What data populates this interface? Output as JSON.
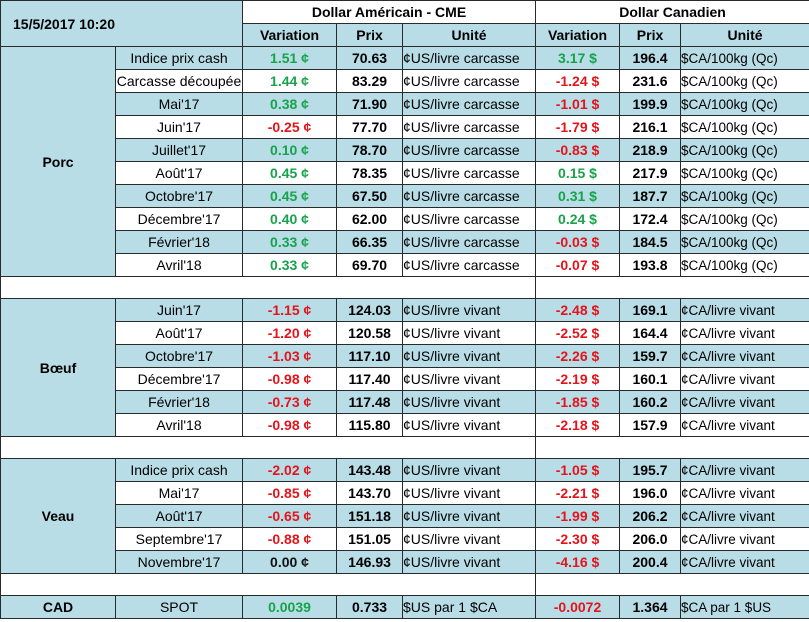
{
  "header": {
    "timestamp": "15/5/2017 10:20",
    "usd_title": "Dollar Américain - CME",
    "cad_title": "Dollar Canadien",
    "variation": "Variation",
    "prix": "Prix",
    "unite": "Unité"
  },
  "colors": {
    "positive": "#17a34a",
    "negative": "#e3141b",
    "band": "#b8dde7"
  },
  "groups": [
    {
      "name": "Porc",
      "rows": [
        {
          "label": "Indice prix cash",
          "usd_var": "1.51 ¢",
          "usd_price": "70.63",
          "usd_unit": "¢US/livre carcasse",
          "cad_var": "3.17 $",
          "cad_price": "196.4",
          "cad_unit": "$CA/100kg (Qc)"
        },
        {
          "label": "Carcasse découpée",
          "usd_var": "1.44 ¢",
          "usd_price": "83.29",
          "usd_unit": "¢US/livre carcasse",
          "cad_var": "-1.24 $",
          "cad_price": "231.6",
          "cad_unit": "$CA/100kg (Qc)"
        },
        {
          "label": "Mai'17",
          "usd_var": "0.38 ¢",
          "usd_price": "71.90",
          "usd_unit": "¢US/livre carcasse",
          "cad_var": "-1.01 $",
          "cad_price": "199.9",
          "cad_unit": "$CA/100kg (Qc)"
        },
        {
          "label": "Juin'17",
          "usd_var": "-0.25 ¢",
          "usd_price": "77.70",
          "usd_unit": "¢US/livre carcasse",
          "cad_var": "-1.79 $",
          "cad_price": "216.1",
          "cad_unit": "$CA/100kg (Qc)"
        },
        {
          "label": "Juillet'17",
          "usd_var": "0.10 ¢",
          "usd_price": "78.70",
          "usd_unit": "¢US/livre carcasse",
          "cad_var": "-0.83 $",
          "cad_price": "218.9",
          "cad_unit": "$CA/100kg (Qc)"
        },
        {
          "label": "Août'17",
          "usd_var": "0.45 ¢",
          "usd_price": "78.35",
          "usd_unit": "¢US/livre carcasse",
          "cad_var": "0.15 $",
          "cad_price": "217.9",
          "cad_unit": "$CA/100kg (Qc)"
        },
        {
          "label": "Octobre'17",
          "usd_var": "0.45 ¢",
          "usd_price": "67.50",
          "usd_unit": "¢US/livre carcasse",
          "cad_var": "0.31 $",
          "cad_price": "187.7",
          "cad_unit": "$CA/100kg (Qc)"
        },
        {
          "label": "Décembre'17",
          "usd_var": "0.40 ¢",
          "usd_price": "62.00",
          "usd_unit": "¢US/livre carcasse",
          "cad_var": "0.24 $",
          "cad_price": "172.4",
          "cad_unit": "$CA/100kg (Qc)"
        },
        {
          "label": "Février'18",
          "usd_var": "0.33 ¢",
          "usd_price": "66.35",
          "usd_unit": "¢US/livre carcasse",
          "cad_var": "-0.03 $",
          "cad_price": "184.5",
          "cad_unit": "$CA/100kg (Qc)"
        },
        {
          "label": "Avril'18",
          "usd_var": "0.33 ¢",
          "usd_price": "69.70",
          "usd_unit": "¢US/livre carcasse",
          "cad_var": "-0.07 $",
          "cad_price": "193.8",
          "cad_unit": "$CA/100kg (Qc)"
        }
      ]
    },
    {
      "name": "Bœuf",
      "rows": [
        {
          "label": "Juin'17",
          "usd_var": "-1.15 ¢",
          "usd_price": "124.03",
          "usd_unit": "¢US/livre vivant",
          "cad_var": "-2.48 $",
          "cad_price": "169.1",
          "cad_unit": "¢CA/livre vivant"
        },
        {
          "label": "Août'17",
          "usd_var": "-1.20 ¢",
          "usd_price": "120.58",
          "usd_unit": "¢US/livre vivant",
          "cad_var": "-2.52 $",
          "cad_price": "164.4",
          "cad_unit": "¢CA/livre vivant"
        },
        {
          "label": "Octobre'17",
          "usd_var": "-1.03 ¢",
          "usd_price": "117.10",
          "usd_unit": "¢US/livre vivant",
          "cad_var": "-2.26 $",
          "cad_price": "159.7",
          "cad_unit": "¢CA/livre vivant"
        },
        {
          "label": "Décembre'17",
          "usd_var": "-0.98 ¢",
          "usd_price": "117.40",
          "usd_unit": "¢US/livre vivant",
          "cad_var": "-2.19 $",
          "cad_price": "160.1",
          "cad_unit": "¢CA/livre vivant"
        },
        {
          "label": "Février'18",
          "usd_var": "-0.73 ¢",
          "usd_price": "117.48",
          "usd_unit": "¢US/livre vivant",
          "cad_var": "-1.85 $",
          "cad_price": "160.2",
          "cad_unit": "¢CA/livre vivant"
        },
        {
          "label": "Avril'18",
          "usd_var": "-0.98 ¢",
          "usd_price": "115.80",
          "usd_unit": "¢US/livre vivant",
          "cad_var": "-2.18 $",
          "cad_price": "157.9",
          "cad_unit": "¢CA/livre vivant"
        }
      ]
    },
    {
      "name": "Veau",
      "rows": [
        {
          "label": "Indice prix cash",
          "usd_var": "-2.02 ¢",
          "usd_price": "143.48",
          "usd_unit": "¢US/livre vivant",
          "cad_var": "-1.05 $",
          "cad_price": "195.7",
          "cad_unit": "¢CA/livre vivant"
        },
        {
          "label": "Mai'17",
          "usd_var": "-0.85 ¢",
          "usd_price": "143.70",
          "usd_unit": "¢US/livre vivant",
          "cad_var": "-2.21 $",
          "cad_price": "196.0",
          "cad_unit": "¢CA/livre vivant"
        },
        {
          "label": "Août'17",
          "usd_var": "-0.65 ¢",
          "usd_price": "151.18",
          "usd_unit": "¢US/livre vivant",
          "cad_var": "-1.99 $",
          "cad_price": "206.2",
          "cad_unit": "¢CA/livre vivant"
        },
        {
          "label": "Septembre'17",
          "usd_var": "-0.88 ¢",
          "usd_price": "151.05",
          "usd_unit": "¢US/livre vivant",
          "cad_var": "-2.30 $",
          "cad_price": "206.0",
          "cad_unit": "¢CA/livre vivant"
        },
        {
          "label": "Novembre'17",
          "usd_var": "0.00 ¢",
          "usd_price": "146.93",
          "usd_unit": "¢US/livre vivant",
          "cad_var": "-4.16 $",
          "cad_price": "200.4",
          "cad_unit": "¢CA/livre vivant"
        }
      ]
    }
  ],
  "cad": {
    "name": "CAD",
    "label": "SPOT",
    "usd_var": "0.0039",
    "usd_price": "0.733",
    "usd_unit": "$US par 1 $CA",
    "cad_var": "-0.0072",
    "cad_price": "1.364",
    "cad_unit": "$CA par 1 $US"
  }
}
